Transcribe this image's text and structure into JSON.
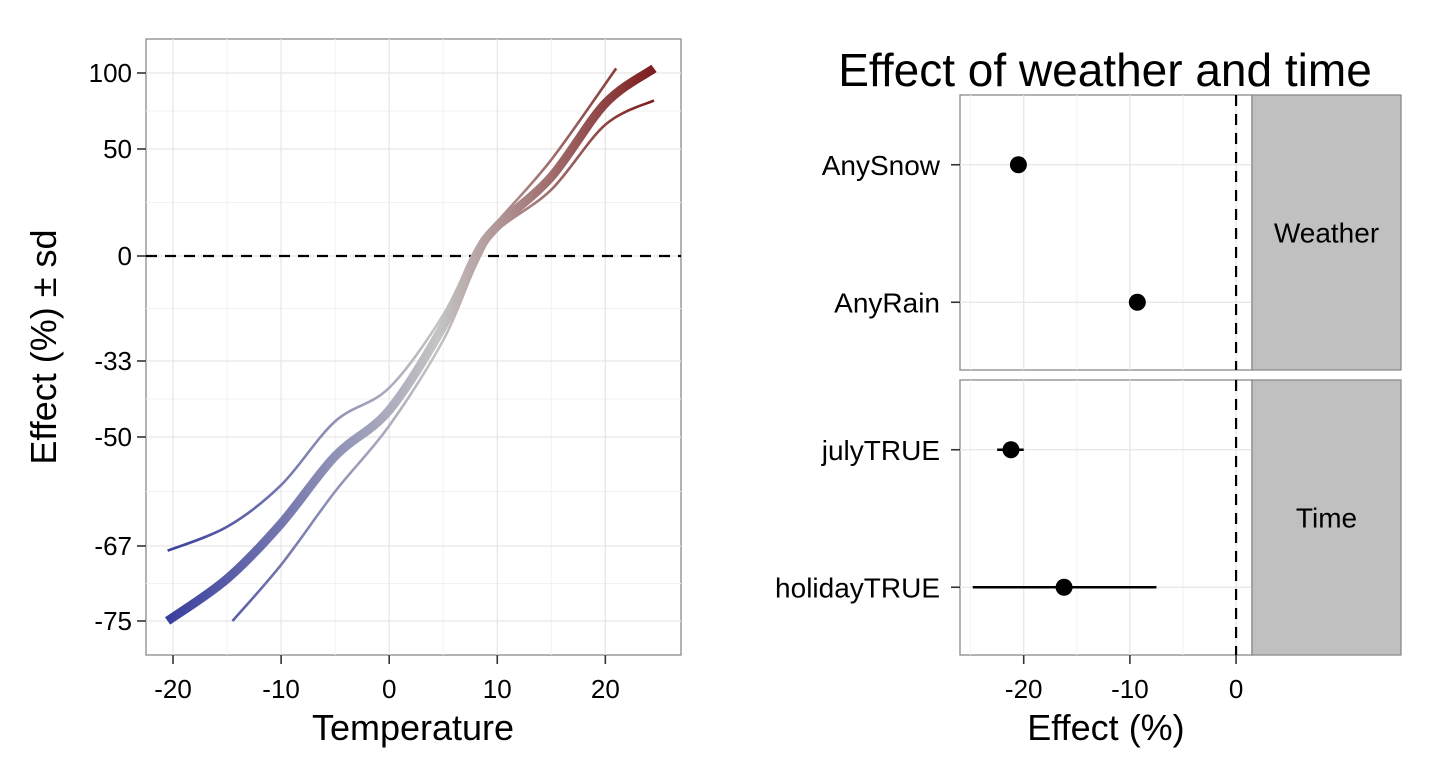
{
  "chart_data": [
    {
      "type": "line",
      "title": "",
      "xlabel": "Temperature",
      "ylabel": "Effect (%) ± sd",
      "xlim": [
        -22.5,
        27
      ],
      "y_ticks": [
        {
          "value": 100,
          "label": "100"
        },
        {
          "value": 50,
          "label": "50"
        },
        {
          "value": 0,
          "label": "0"
        },
        {
          "value": -33,
          "label": "-33"
        },
        {
          "value": -50,
          "label": "-50"
        },
        {
          "value": -67,
          "label": "-67"
        },
        {
          "value": -75,
          "label": "-75"
        }
      ],
      "x_ticks": [
        {
          "value": -20,
          "label": "-20"
        },
        {
          "value": -10,
          "label": "-10"
        },
        {
          "value": 0,
          "label": "0"
        },
        {
          "value": 10,
          "label": "10"
        },
        {
          "value": 20,
          "label": "20"
        }
      ],
      "y_scale": "log ratio (tick labels as printed)",
      "reference_line": {
        "y": 0,
        "style": "dashed"
      },
      "grid": true,
      "color_gradient": {
        "low": "#3a3f9e",
        "mid": "#c4c4c4",
        "high": "#7d1a1a"
      },
      "series": [
        {
          "role": "estimate",
          "x": [
            -20.5,
            -15,
            -10,
            -5,
            0,
            5,
            8,
            10,
            15,
            20,
            24.5
          ],
          "y": [
            -75,
            -70.5,
            -63.5,
            -53,
            -44,
            -22,
            0,
            14,
            37,
            80,
            103
          ]
        },
        {
          "role": "upper",
          "x": [
            -20.5,
            -15,
            -10,
            -5,
            0,
            5,
            8,
            10,
            15,
            21
          ],
          "y": [
            -67.5,
            -64,
            -57.5,
            -46.5,
            -39,
            -18.5,
            3,
            16,
            45,
            103
          ]
        },
        {
          "role": "lower",
          "x": [
            -14.5,
            -10,
            -5,
            0,
            5,
            8,
            10,
            15,
            20,
            24.5
          ],
          "y": [
            -75,
            -69,
            -58.5,
            -47.5,
            -26.5,
            -3,
            12,
            31,
            66,
            82
          ]
        }
      ]
    },
    {
      "type": "scatter",
      "title": "Effect of weather and time",
      "xlabel": "Effect (%)",
      "ylabel": "",
      "xlim": [
        -26,
        1.5
      ],
      "x_ticks": [
        {
          "value": -20,
          "label": "-20"
        },
        {
          "value": -10,
          "label": "-10"
        },
        {
          "value": 0,
          "label": "0"
        }
      ],
      "reference_line": {
        "x": 0,
        "style": "dashed"
      },
      "grid": true,
      "facets": [
        {
          "label": "Weather",
          "points": [
            {
              "category": "AnySnow",
              "value": -20.5,
              "low": -20.5,
              "high": -20.5
            },
            {
              "category": "AnyRain",
              "value": -9.3,
              "low": -9.3,
              "high": -9.3
            }
          ]
        },
        {
          "label": "Time",
          "points": [
            {
              "category": "julyTRUE",
              "value": -21.2,
              "low": -22.5,
              "high": -20
            },
            {
              "category": "holidayTRUE",
              "value": -16.2,
              "low": -24.8,
              "high": -7.5
            }
          ]
        }
      ]
    }
  ]
}
